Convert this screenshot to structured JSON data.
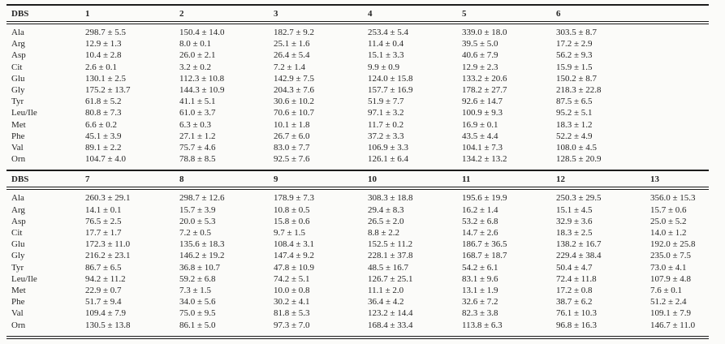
{
  "colors": {
    "background": "#fbfbf9",
    "text": "#262626",
    "rule": "#1c1c1c"
  },
  "tables": [
    {
      "header": [
        "DBS",
        "1",
        "2",
        "3",
        "4",
        "5",
        "6",
        ""
      ],
      "rows": [
        {
          "label": "Ala",
          "values": [
            "298.7 ± 5.5",
            "150.4 ± 14.0",
            "182.7 ± 9.2",
            "253.4 ± 5.4",
            "339.0 ± 18.0",
            "303.5 ± 8.7",
            ""
          ]
        },
        {
          "label": "Arg",
          "values": [
            "12.9 ± 1.3",
            "8.0 ± 0.1",
            "25.1 ± 1.6",
            "11.4 ± 0.4",
            "39.5 ± 5.0",
            "17.2 ± 2.9",
            ""
          ]
        },
        {
          "label": "Asp",
          "values": [
            "10.4 ± 2.8",
            "26.0 ± 2.1",
            "26.4 ± 5.4",
            "15.1 ± 3.3",
            "40.6 ± 7.9",
            "56.2 ± 9.3",
            ""
          ]
        },
        {
          "label": "Cit",
          "values": [
            "2.6 ± 0.1",
            "3.2 ± 0.2",
            "7.2 ± 1.4",
            "9.9 ± 0.9",
            "12.9 ± 2.3",
            "15.9 ± 1.5",
            ""
          ]
        },
        {
          "label": "Glu",
          "values": [
            "130.1 ± 2.5",
            "112.3 ± 10.8",
            "142.9 ± 7.5",
            "124.0 ± 15.8",
            "133.2 ± 20.6",
            "150.2 ± 8.7",
            ""
          ]
        },
        {
          "label": "Gly",
          "values": [
            "175.2 ± 13.7",
            "144.3 ± 10.9",
            "204.3 ± 7.6",
            "157.7 ± 16.9",
            "178.2 ± 27.7",
            "218.3 ± 22.8",
            ""
          ]
        },
        {
          "label": "Tyr",
          "values": [
            "61.8 ± 5.2",
            "41.1 ± 5.1",
            "30.6 ± 10.2",
            "51.9 ± 7.7",
            "92.6 ± 14.7",
            "87.5 ± 6.5",
            ""
          ]
        },
        {
          "label": "Leu/Ile",
          "values": [
            "80.8 ± 7.3",
            "61.0 ± 3.7",
            "70.6 ± 10.7",
            "97.1 ± 3.2",
            "100.9 ± 9.3",
            "95.2 ± 5.1",
            ""
          ]
        },
        {
          "label": "Met",
          "values": [
            "6.6 ± 0.2",
            "6.3 ± 0.3",
            "10.1 ± 1.8",
            "11.7 ± 0.2",
            "16.9 ± 0.1",
            "18.3 ± 1.2",
            ""
          ]
        },
        {
          "label": "Phe",
          "values": [
            "45.1 ± 3.9",
            "27.1 ± 1.2",
            "26.7 ± 6.0",
            "37.2 ± 3.3",
            "43.5 ± 4.4",
            "52.2 ± 4.9",
            ""
          ]
        },
        {
          "label": "Val",
          "values": [
            "89.1 ± 2.2",
            "75.7 ± 4.6",
            "83.0 ± 7.7",
            "106.9 ± 3.3",
            "104.1 ± 7.3",
            "108.0 ± 4.5",
            ""
          ]
        },
        {
          "label": "Orn",
          "values": [
            "104.7 ± 4.0",
            "78.8 ± 8.5",
            "92.5 ± 7.6",
            "126.1 ± 6.4",
            "134.2 ± 13.2",
            "128.5 ± 20.9",
            ""
          ]
        }
      ]
    },
    {
      "header": [
        "DBS",
        "7",
        "8",
        "9",
        "10",
        "11",
        "12",
        "13"
      ],
      "rows": [
        {
          "label": "Ala",
          "values": [
            "260.3 ± 29.1",
            "298.7 ± 12.6",
            "178.9 ± 7.3",
            "308.3 ± 18.8",
            "195.6 ± 19.9",
            "250.3 ± 29.5",
            "356.0 ± 15.3"
          ]
        },
        {
          "label": "Arg",
          "values": [
            "14.1 ± 0.1",
            "15.7 ± 3.9",
            "10.8 ± 0.5",
            "29.4 ± 8.3",
            "16.2 ± 1.4",
            "15.1 ± 4.5",
            "15.7 ± 0.6"
          ]
        },
        {
          "label": "Asp",
          "values": [
            "76.5 ± 2.5",
            "20.0 ± 5.3",
            "15.8 ± 0.6",
            "26.5 ± 2.0",
            "53.2 ± 6.8",
            "32.9 ± 3.6",
            "25.0 ± 5.2"
          ]
        },
        {
          "label": "Cit",
          "values": [
            "17.7 ± 1.7",
            "7.2 ± 0.5",
            "9.7 ± 1.5",
            "8.8 ± 2.2",
            "14.7 ± 2.6",
            "18.3 ± 2.5",
            "14.0 ± 1.2"
          ]
        },
        {
          "label": "Glu",
          "values": [
            "172.3 ± 11.0",
            "135.6 ± 18.3",
            "108.4 ± 3.1",
            "152.5 ± 11.2",
            "186.7 ± 36.5",
            "138.2 ± 16.7",
            "192.0 ± 25.8"
          ]
        },
        {
          "label": "Gly",
          "values": [
            "216.2 ± 23.1",
            "146.2 ± 19.2",
            "147.4 ± 9.2",
            "228.1 ± 37.8",
            "168.7 ± 18.7",
            "229.4 ± 38.4",
            "235.0 ± 7.5"
          ]
        },
        {
          "label": "Tyr",
          "values": [
            "86.7 ± 6.5",
            "36.8 ± 10.7",
            "47.8 ± 10.9",
            "48.5 ± 16.7",
            "54.2 ± 6.1",
            "50.4 ± 4.7",
            "73.0 ± 4.1"
          ]
        },
        {
          "label": "Leu/Ile",
          "values": [
            "94.2 ± 11.2",
            "59.2 ± 6.8",
            "74.2 ± 5.1",
            "126.7 ± 25.1",
            "83.1 ± 9.6",
            "72.4 ± 11.8",
            "107.9 ± 4.8"
          ]
        },
        {
          "label": "Met",
          "values": [
            "22.9 ± 0.7",
            "7.3 ± 1.5",
            "10.0 ± 0.8",
            "11.1 ± 2.0",
            "13.1 ± 1.9",
            "17.2 ± 0.8",
            "7.6 ± 0.1"
          ]
        },
        {
          "label": "Phe",
          "values": [
            "51.7 ± 9.4",
            "34.0 ± 5.6",
            "30.2 ± 4.1",
            "36.4 ± 4.2",
            "32.6 ± 7.2",
            "38.7 ± 6.2",
            "51.2 ± 2.4"
          ]
        },
        {
          "label": "Val",
          "values": [
            "109.4 ± 7.9",
            "75.0 ± 9.5",
            "81.8 ± 5.3",
            "123.2 ± 14.4",
            "82.3 ± 3.8",
            "76.1 ± 10.3",
            "109.1 ± 7.9"
          ]
        },
        {
          "label": "Orn",
          "values": [
            "130.5 ± 13.8",
            "86.1 ± 5.0",
            "97.3 ± 7.0",
            "168.4 ± 33.4",
            "113.8 ± 6.3",
            "96.8 ± 16.3",
            "146.7 ± 11.0"
          ]
        }
      ]
    }
  ]
}
